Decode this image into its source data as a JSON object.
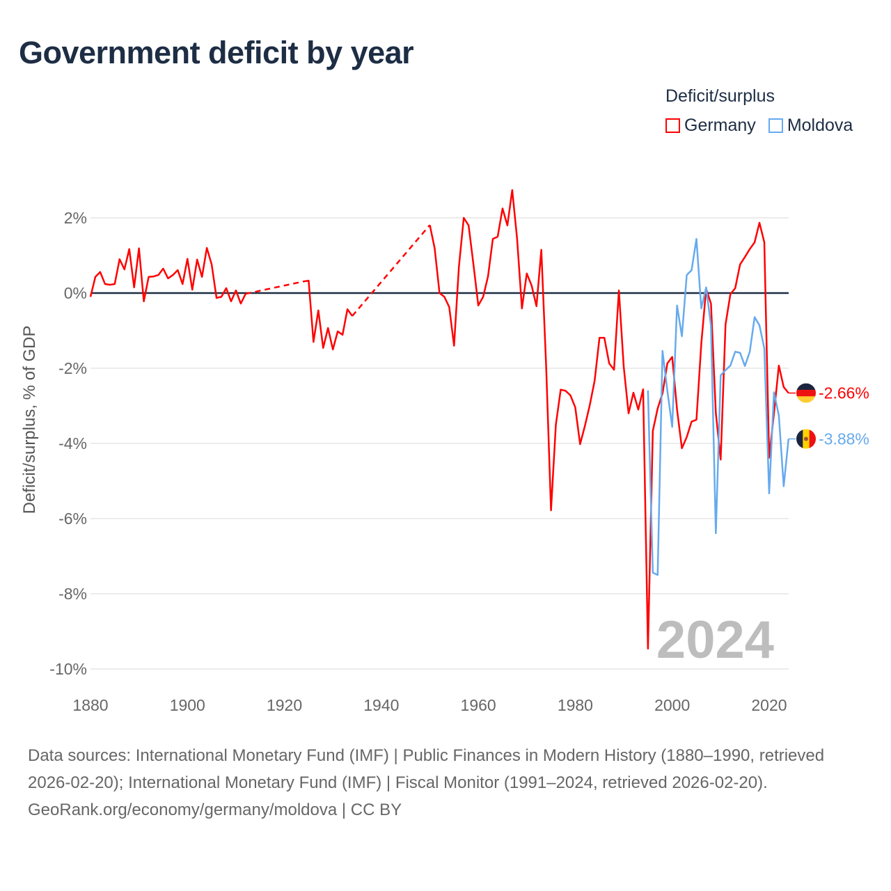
{
  "title": "Government deficit by year",
  "legend": {
    "title": "Deficit/surplus",
    "items": [
      {
        "label": "Germany",
        "color": "#ff0000"
      },
      {
        "label": "Moldova",
        "color": "#66aaee"
      }
    ]
  },
  "footer": {
    "sources": "Data sources: International Monetary Fund (IMF) | Public Finances in Modern History (1880–1990, retrieved 2026-02-20); International Monetary Fund (IMF) | Fiscal Monitor (1991–2024, retrieved 2026-02-20).",
    "credit": "GeoRank.org/economy/germany/moldova | CC BY"
  },
  "chart_data": {
    "type": "line",
    "title": "Government deficit by year",
    "xlabel": "",
    "ylabel": "Deficit/surplus, % of GDP",
    "xlim": [
      1880,
      2024
    ],
    "ylim": [
      -10,
      2.8
    ],
    "x_ticks": [
      1880,
      1900,
      1920,
      1940,
      1960,
      1980,
      2000,
      2020
    ],
    "x_tick_labels": [
      "1880",
      "1900",
      "1920",
      "1940",
      "1960",
      "1980",
      "2000",
      "2020"
    ],
    "y_ticks": [
      2,
      0,
      -2,
      -4,
      -6,
      -8,
      -10
    ],
    "y_tick_labels": [
      "2%",
      "0%",
      "-2%",
      "-4%",
      "-6%",
      "-8%",
      "-10%"
    ],
    "grid": true,
    "legend_position": "top-right",
    "year_watermark": "2024",
    "series": [
      {
        "name": "Germany",
        "color": "#ff0000",
        "start_year": 1880,
        "end_label": "-2.66%",
        "values": [
          -0.1,
          0.43,
          0.56,
          0.24,
          0.22,
          0.24,
          0.9,
          0.63,
          1.17,
          0.15,
          1.19,
          -0.22,
          0.43,
          0.44,
          0.48,
          0.65,
          0.39,
          0.48,
          0.61,
          0.24,
          0.91,
          0.09,
          0.89,
          0.43,
          1.2,
          0.76,
          -0.13,
          -0.1,
          0.13,
          -0.22,
          0.07,
          -0.28,
          -0.02,
          null,
          null,
          null,
          null,
          null,
          null,
          null,
          null,
          null,
          null,
          null,
          0.31,
          0.33,
          -1.3,
          -0.46,
          -1.46,
          -0.93,
          -1.5,
          -1.02,
          -1.11,
          -0.43,
          -0.61,
          null,
          null,
          null,
          null,
          null,
          null,
          null,
          null,
          null,
          null,
          null,
          null,
          null,
          null,
          null,
          1.81,
          1.19,
          0,
          -0.1,
          -0.37,
          -1.4,
          0.7,
          2.0,
          1.8,
          0.76,
          -0.33,
          -0.1,
          0.44,
          1.44,
          1.5,
          2.25,
          1.8,
          2.74,
          1.45,
          -0.41,
          0.52,
          0.2,
          -0.35,
          1.15,
          -1.96,
          -5.78,
          -3.5,
          -2.57,
          -2.6,
          -2.72,
          -3.04,
          -4.02,
          -3.53,
          -2.98,
          -2.33,
          -1.19,
          -1.19,
          -1.87,
          -2.04,
          0.07,
          -1.96,
          -3.2,
          -2.65,
          -3.1,
          -2.56,
          -9.46,
          -3.67,
          -3.07,
          -2.67,
          -1.87,
          -1.7,
          -3.1,
          -4.13,
          -3.83,
          -3.42,
          -3.37,
          -1.35,
          0.11,
          -0.28,
          -3.19,
          -4.43,
          -0.84,
          -0.03,
          0.13,
          0.76,
          0.96,
          1.17,
          1.35,
          1.87,
          1.35,
          -4.38,
          -3.19,
          -1.93,
          -2.5,
          -2.66
        ]
      },
      {
        "name": "Moldova",
        "color": "#66aaee",
        "start_year": 1995,
        "end_label": "-3.88%",
        "values": [
          -2.59,
          -7.44,
          -7.5,
          -1.54,
          -2.6,
          -3.56,
          -0.33,
          -1.15,
          0.48,
          0.61,
          1.44,
          -0.41,
          0.15,
          -0.87,
          -6.39,
          -2.19,
          -2.05,
          -1.93,
          -1.56,
          -1.59,
          -1.94,
          -1.56,
          -0.64,
          -0.86,
          -1.47,
          -5.33,
          -2.64,
          -3.26,
          -5.14,
          -3.88
        ]
      }
    ]
  }
}
